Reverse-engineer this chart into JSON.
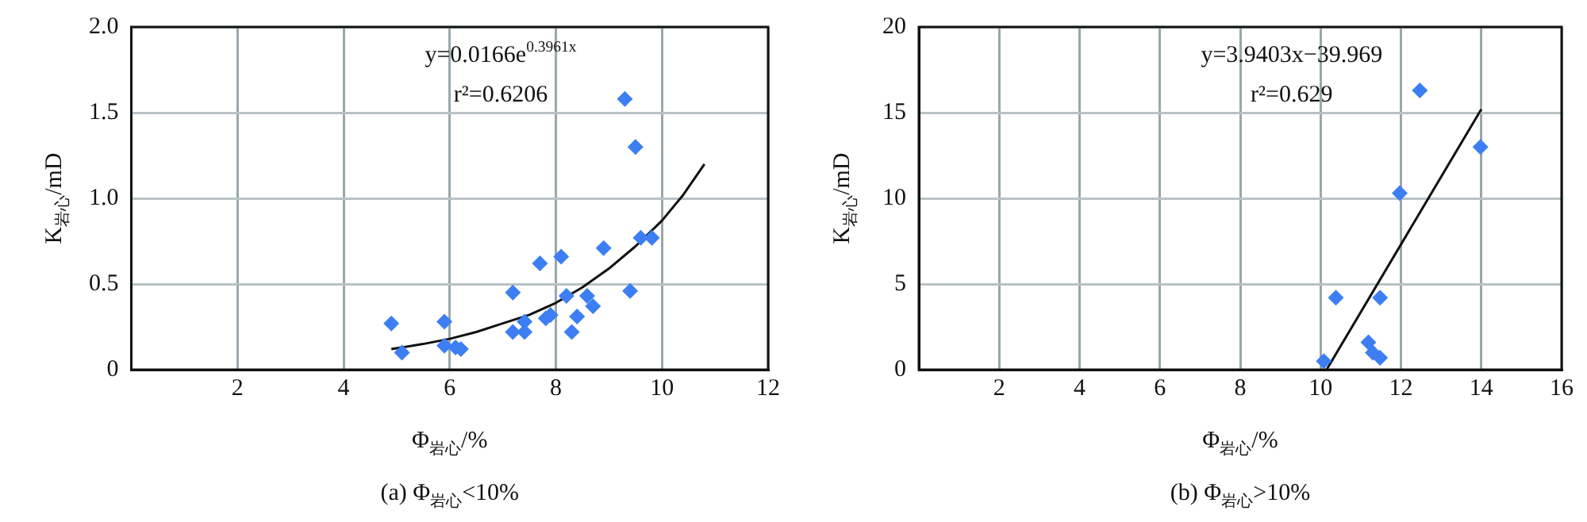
{
  "chart_data": [
    {
      "type": "scatter",
      "title": "(a) Φ$_{岩心}$<10%",
      "xlabel": "Φ$_{岩心}$/%",
      "ylabel": "K$_{岩心}$/mD",
      "annotations": [
        "y=0.0166e$^{0.3961x}$",
        "r²=0.6206"
      ],
      "xlim": [
        0,
        12
      ],
      "xticks": [
        2,
        4,
        6,
        8,
        10,
        12
      ],
      "ylim": [
        0,
        2
      ],
      "yticks": [
        0,
        {
          "value": 0.5,
          "label": "0.5"
        },
        {
          "value": 1,
          "label": "1.0"
        },
        {
          "value": 1.5,
          "label": "1.5"
        },
        {
          "value": 2,
          "label": "2.0"
        }
      ],
      "grid": true,
      "legend": false,
      "series": [
        {
          "type": "scatter",
          "marker": "diamond",
          "color": "#3d7ff2",
          "x": [
            4.9,
            5.1,
            5.9,
            5.9,
            6.11,
            6.21,
            7.19,
            7.19,
            7.41,
            7.41,
            7.7,
            7.81,
            7.9,
            8.1,
            8.2,
            8.3,
            8.4,
            8.59,
            8.7,
            8.9,
            9.3,
            9.4,
            9.5,
            9.6,
            9.81
          ],
          "values": [
            0.27,
            0.1,
            0.28,
            0.14,
            0.13,
            0.12,
            0.45,
            0.22,
            0.28,
            0.22,
            0.62,
            0.3,
            0.32,
            0.66,
            0.43,
            0.22,
            0.31,
            0.43,
            0.37,
            0.71,
            1.58,
            0.46,
            1.3,
            0.77,
            0.77
          ]
        },
        {
          "type": "line",
          "marker": "none",
          "color": "#111111",
          "x": [
            4.9,
            5.5,
            6,
            6.5,
            7,
            7.5,
            8,
            8.5,
            9,
            9.5,
            10,
            10.4,
            10.8
          ],
          "values": [
            0.12,
            0.15,
            0.18,
            0.22,
            0.27,
            0.32,
            0.39,
            0.48,
            0.59,
            0.72,
            0.87,
            1.02,
            1.2
          ]
        }
      ]
    },
    {
      "type": "scatter",
      "title": "(b) Φ$_{岩心}$>10%",
      "xlabel": "Φ$_{岩心}$/%",
      "ylabel": "K$_{岩心}$/mD",
      "annotations": [
        "y=3.9403x−39.969",
        "r²=0.629"
      ],
      "xlim": [
        0,
        16
      ],
      "xticks": [
        2,
        4,
        6,
        8,
        10,
        12,
        14,
        16
      ],
      "ylim": [
        0,
        20
      ],
      "yticks": [
        0,
        5,
        10,
        15,
        20
      ],
      "grid": true,
      "legend": false,
      "series": [
        {
          "type": "scatter",
          "marker": "diamond",
          "color": "#3d7ff2",
          "x": [
            10.08,
            10.38,
            11.19,
            11.3,
            11.48,
            11.48,
            11.97,
            12.47,
            13.98
          ],
          "values": [
            0.5,
            4.2,
            1.6,
            1.0,
            0.7,
            4.2,
            10.3,
            16.3,
            13.0
          ]
        },
        {
          "type": "line",
          "marker": "none",
          "color": "#111111",
          "x": [
            10.15,
            14
          ],
          "values": [
            0,
            15.2
          ]
        }
      ]
    }
  ]
}
